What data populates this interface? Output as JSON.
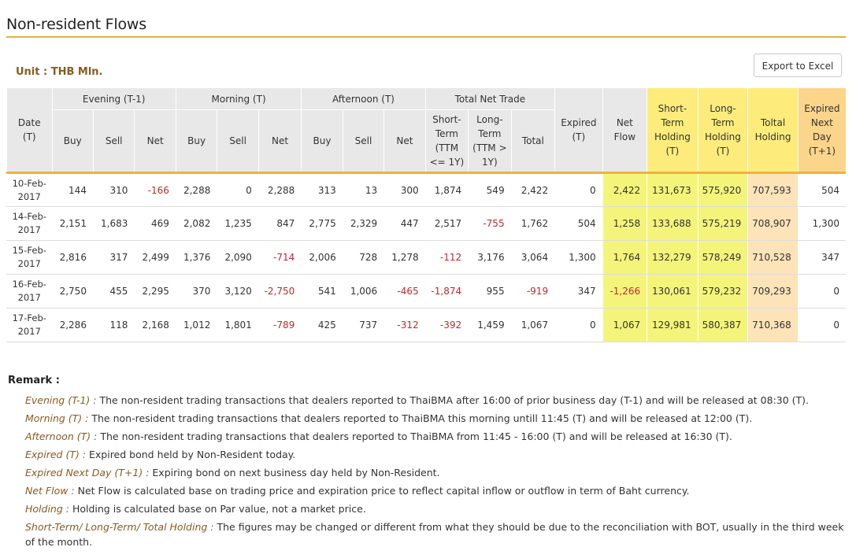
{
  "page": {
    "title": "Non-resident Flows",
    "unit": "Unit : THB Mln.",
    "export_button": "Export to Excel"
  },
  "colors": {
    "accent_rule": "#e0b33a",
    "header_bg": "#e8e8e8",
    "holding_highlight": "#f4f47a",
    "expired_next_day_highlight": "#fde3b8",
    "negative_value": "#c0282d",
    "remark_term": "#8a5a1f"
  },
  "table": {
    "date_header": [
      "Date",
      "(T)"
    ],
    "groups": {
      "evening": "Evening (T-1)",
      "morning": "Morning (T)",
      "afternoon": "Afternoon (T)",
      "total_net_trade": "Total Net Trade"
    },
    "sub": {
      "buy": "Buy",
      "sell": "Sell",
      "net": "Net",
      "short_term": [
        "Short-",
        "Term",
        "(TTM",
        "<= 1Y)"
      ],
      "long_term": [
        "Long-",
        "Term",
        "(TTM >",
        "1Y)"
      ],
      "total": "Total"
    },
    "expired_header": [
      "Expired",
      "(T)"
    ],
    "net_flow_header": [
      "Net",
      "Flow"
    ],
    "short_term_holding_header": [
      "Short-",
      "Term",
      "Holding",
      "(T)"
    ],
    "long_term_holding_header": [
      "Long-",
      "Term",
      "Holding",
      "(T)"
    ],
    "total_holding_header": [
      "Toltal",
      "Holding"
    ],
    "expired_next_day_header": [
      "Expired",
      "Next",
      "Day",
      "(T+1)"
    ],
    "rows": [
      {
        "date": [
          "10-Feb-",
          "2017"
        ],
        "values": [
          "144",
          "310",
          "-166",
          "2,288",
          "0",
          "2,288",
          "313",
          "13",
          "300",
          "1,874",
          "549",
          "2,422",
          "0",
          "2,422",
          "131,673",
          "575,920",
          "707,593",
          "504"
        ]
      },
      {
        "date": [
          "14-Feb-",
          "2017"
        ],
        "values": [
          "2,151",
          "1,683",
          "469",
          "2,082",
          "1,235",
          "847",
          "2,775",
          "2,329",
          "447",
          "2,517",
          "-755",
          "1,762",
          "504",
          "1,258",
          "133,688",
          "575,219",
          "708,907",
          "1,300"
        ]
      },
      {
        "date": [
          "15-Feb-",
          "2017"
        ],
        "values": [
          "2,816",
          "317",
          "2,499",
          "1,376",
          "2,090",
          "-714",
          "2,006",
          "728",
          "1,278",
          "-112",
          "3,176",
          "3,064",
          "1,300",
          "1,764",
          "132,279",
          "578,249",
          "710,528",
          "347"
        ]
      },
      {
        "date": [
          "16-Feb-",
          "2017"
        ],
        "values": [
          "2,750",
          "455",
          "2,295",
          "370",
          "3,120",
          "-2,750",
          "541",
          "1,006",
          "-465",
          "-1,874",
          "955",
          "-919",
          "347",
          "-1,266",
          "130,061",
          "579,232",
          "709,293",
          "0"
        ]
      },
      {
        "date": [
          "17-Feb-",
          "2017"
        ],
        "values": [
          "2,286",
          "118",
          "2,168",
          "1,012",
          "1,801",
          "-789",
          "425",
          "737",
          "-312",
          "-392",
          "1,459",
          "1,067",
          "0",
          "1,067",
          "129,981",
          "580,387",
          "710,368",
          "0"
        ]
      }
    ]
  },
  "remarks": {
    "title": "Remark :",
    "items": [
      {
        "term": "Evening (T-1) :",
        "text": " The non-resident trading transactions that dealers reported to ThaiBMA after 16:00 of prior business day (T-1) and will be released at 08:30 (T)."
      },
      {
        "term": "Morning (T) :",
        "text": " The non-resident trading transactions that dealers reported to ThaiBMA this morning untill 11:45 (T) and will be released at 12:00 (T)."
      },
      {
        "term": "Afternoon (T) :",
        "text": " The non-resident trading transactions that dealers reported to ThaiBMA from 11:45 - 16:00 (T) and will be released at 16:30 (T)."
      },
      {
        "term": "Expired (T) :",
        "text": " Expired bond held by Non-Resident today."
      },
      {
        "term": "Expired Next Day (T+1) :",
        "text": " Expiring bond on next business day held by Non-Resident."
      },
      {
        "term": "Net Flow :",
        "text": " Net Flow is calculated base on trading price and expiration price to reflect capital inflow or outflow in term of Baht currency."
      },
      {
        "term": "Holding :",
        "text": " Holding is calculated base on Par value, not a market price."
      },
      {
        "term": "Short-Term/ Long-Term/ Total Holding :",
        "text": " The figures may be changed or different from what they should be due to the reconciliation with BOT, usually in the third week of the month."
      }
    ]
  }
}
